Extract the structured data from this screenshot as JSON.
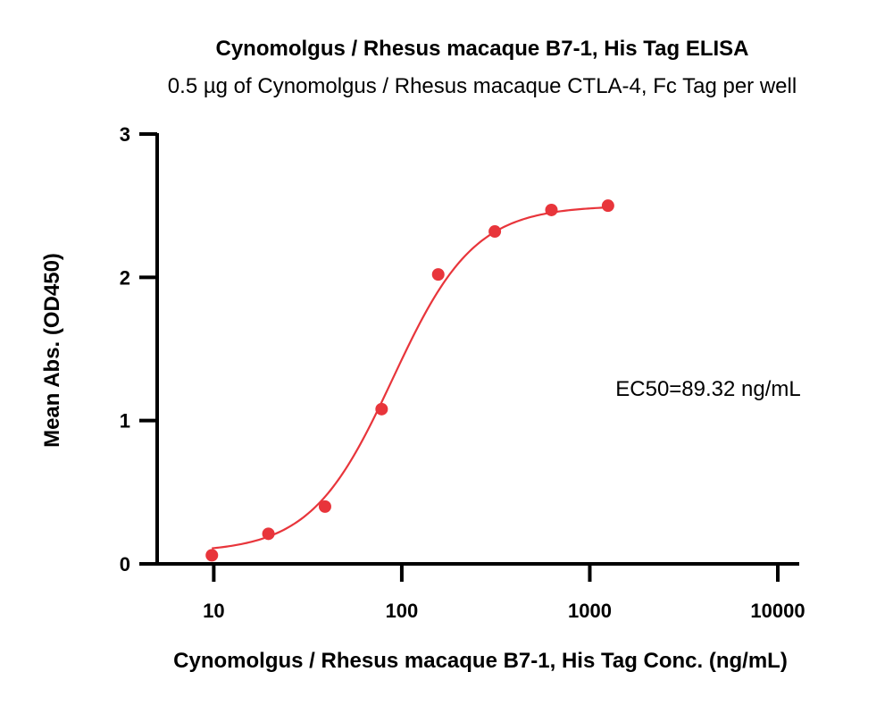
{
  "chart_data": {
    "type": "scatter",
    "title": "Cynomolgus / Rhesus macaque B7-1, His Tag ELISA",
    "subtitle": "0.5 µg of Cynomolgus / Rhesus macaque CTLA-4, Fc Tag per well",
    "xlabel": "Cynomolgus / Rhesus macaque B7-1, His Tag Conc. (ng/mL)",
    "ylabel": "Mean Abs. (OD450)",
    "x_scale": "log",
    "xlim": [
      5,
      13000
    ],
    "ylim": [
      0,
      3
    ],
    "x_ticks": [
      10,
      100,
      1000,
      10000
    ],
    "x_tick_labels": [
      "10",
      "100",
      "1000",
      "10000"
    ],
    "y_ticks": [
      0,
      1,
      2,
      3
    ],
    "y_tick_labels": [
      "0",
      "1",
      "2",
      "3"
    ],
    "grid": false,
    "annotation": "EC50=89.32 ng/mL",
    "series": [
      {
        "color": "#e8353b",
        "points": [
          {
            "x": 9.77,
            "y": 0.06
          },
          {
            "x": 19.53,
            "y": 0.21
          },
          {
            "x": 39.06,
            "y": 0.4
          },
          {
            "x": 78.13,
            "y": 1.08
          },
          {
            "x": 156.25,
            "y": 2.02
          },
          {
            "x": 312.5,
            "y": 2.32
          },
          {
            "x": 625,
            "y": 2.47
          },
          {
            "x": 1250,
            "y": 2.5
          }
        ]
      }
    ]
  }
}
